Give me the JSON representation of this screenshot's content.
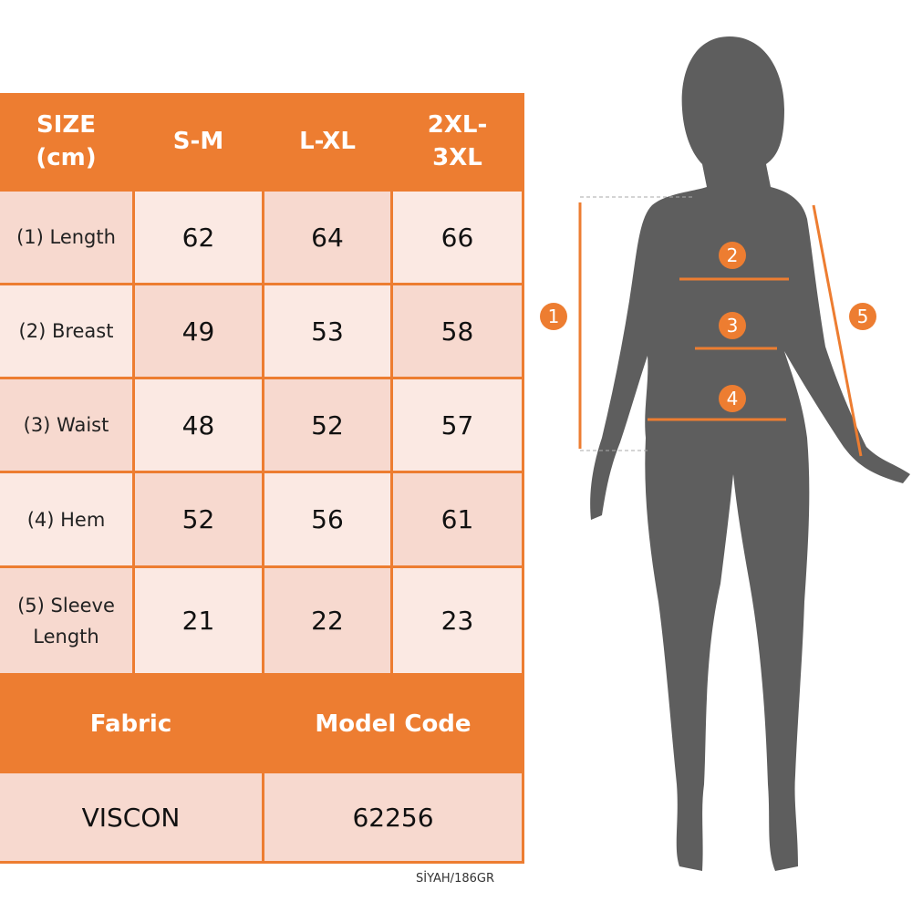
{
  "colors": {
    "accent": "#ed7d31",
    "cell_dark": "#f7d9cf",
    "cell_light": "#fbe9e3",
    "silhouette": "#5e5e5e"
  },
  "table": {
    "header": [
      "SIZE\n(cm)",
      "S-M",
      "L-XL",
      "2XL-\n3XL"
    ],
    "rows": [
      {
        "label": "(1) Length",
        "values": [
          "62",
          "64",
          "66"
        ]
      },
      {
        "label": "(2) Breast",
        "values": [
          "49",
          "53",
          "58"
        ]
      },
      {
        "label": "(3) Waist",
        "values": [
          "48",
          "52",
          "57"
        ]
      },
      {
        "label": "(4) Hem",
        "values": [
          "52",
          "56",
          "61"
        ]
      },
      {
        "label": "(5) Sleeve\nLength",
        "values": [
          "21",
          "22",
          "23"
        ]
      }
    ],
    "footer_header": [
      "Fabric",
      "Model Code"
    ],
    "footer_values": [
      "VISCON",
      "62256"
    ]
  },
  "note": "SİYAH/186GR",
  "figure": {
    "markers": [
      "1",
      "2",
      "3",
      "4",
      "5"
    ]
  }
}
